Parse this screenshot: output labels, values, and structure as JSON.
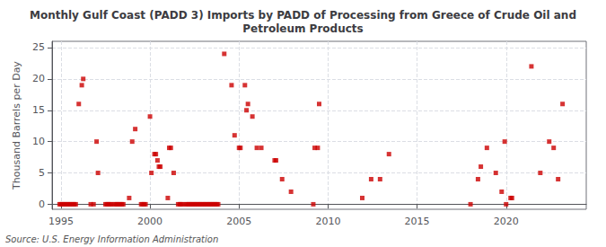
{
  "chart_data": {
    "type": "scatter",
    "title": "Monthly Gulf Coast (PADD 3) Imports by PADD of Processing from Greece of Crude Oil and\nPetroleum Products",
    "ylabel": "Thousand Barrels per Day",
    "annotations": [
      "Source: U.S. Energy Information Administration"
    ],
    "color": "#cc0000",
    "marker": "square",
    "grid": true,
    "xlim": [
      1994.5,
      2024.5
    ],
    "ylim": [
      -0.8,
      26
    ],
    "xticks": [
      1995,
      2000,
      2005,
      2010,
      2015,
      2020
    ],
    "yticks": [
      0,
      5,
      10,
      15,
      20,
      25
    ],
    "x": [
      1994.92,
      1995.0,
      1995.08,
      1995.17,
      1995.25,
      1995.33,
      1995.42,
      1995.5,
      1995.58,
      1995.67,
      1995.75,
      1995.83,
      1996.0,
      1996.17,
      1996.25,
      1996.67,
      1996.83,
      1997.0,
      1997.08,
      1997.5,
      1997.58,
      1997.67,
      1997.75,
      1997.83,
      1998.0,
      1998.08,
      1998.17,
      1998.25,
      1998.33,
      1998.42,
      1998.5,
      1998.83,
      1999.0,
      1999.17,
      1999.5,
      1999.58,
      1999.67,
      1999.75,
      2000.0,
      2000.08,
      2000.25,
      2000.33,
      2000.42,
      2000.5,
      2000.58,
      2001.0,
      2001.08,
      2001.17,
      2001.33,
      2001.58,
      2001.67,
      2001.75,
      2001.83,
      2002.0,
      2002.08,
      2002.17,
      2002.25,
      2002.33,
      2002.42,
      2002.5,
      2002.58,
      2002.67,
      2002.75,
      2002.83,
      2002.92,
      2003.0,
      2003.08,
      2003.17,
      2003.25,
      2003.33,
      2003.42,
      2003.5,
      2003.58,
      2003.67,
      2003.75,
      2003.83,
      2004.17,
      2004.58,
      2004.75,
      2005.0,
      2005.08,
      2005.33,
      2005.42,
      2005.5,
      2005.75,
      2006.0,
      2006.25,
      2007.0,
      2007.08,
      2007.42,
      2007.92,
      2009.17,
      2009.25,
      2009.42,
      2009.5,
      2011.92,
      2012.42,
      2012.92,
      2013.42,
      2018.0,
      2018.42,
      2018.58,
      2018.92,
      2019.42,
      2019.75,
      2019.92,
      2020.0,
      2020.25,
      2020.33,
      2021.42,
      2021.92,
      2022.42,
      2022.67,
      2022.92,
      2023.17
    ],
    "values": [
      0,
      0,
      0,
      0,
      0,
      0,
      0,
      0,
      0,
      0,
      0,
      0,
      16,
      19,
      20,
      0,
      0,
      10,
      5,
      0,
      0,
      0,
      0,
      0,
      0,
      0,
      0,
      0,
      0,
      0,
      0,
      1,
      10,
      12,
      0,
      0,
      0,
      0,
      14,
      5,
      8,
      8,
      7,
      6,
      6,
      1,
      9,
      9,
      5,
      0,
      0,
      0,
      0,
      0,
      0,
      0,
      0,
      0,
      0,
      0,
      0,
      0,
      0,
      0,
      0,
      0,
      0,
      0,
      0,
      0,
      0,
      0,
      0,
      0,
      0,
      0,
      24,
      19,
      11,
      9,
      9,
      19,
      15,
      16,
      14,
      9,
      9,
      7,
      7,
      4,
      2,
      0,
      9,
      9,
      16,
      1,
      4,
      4,
      8,
      0,
      4,
      6,
      9,
      5,
      2,
      10,
      0,
      1,
      1,
      22,
      5,
      10,
      9,
      4,
      16
    ]
  }
}
